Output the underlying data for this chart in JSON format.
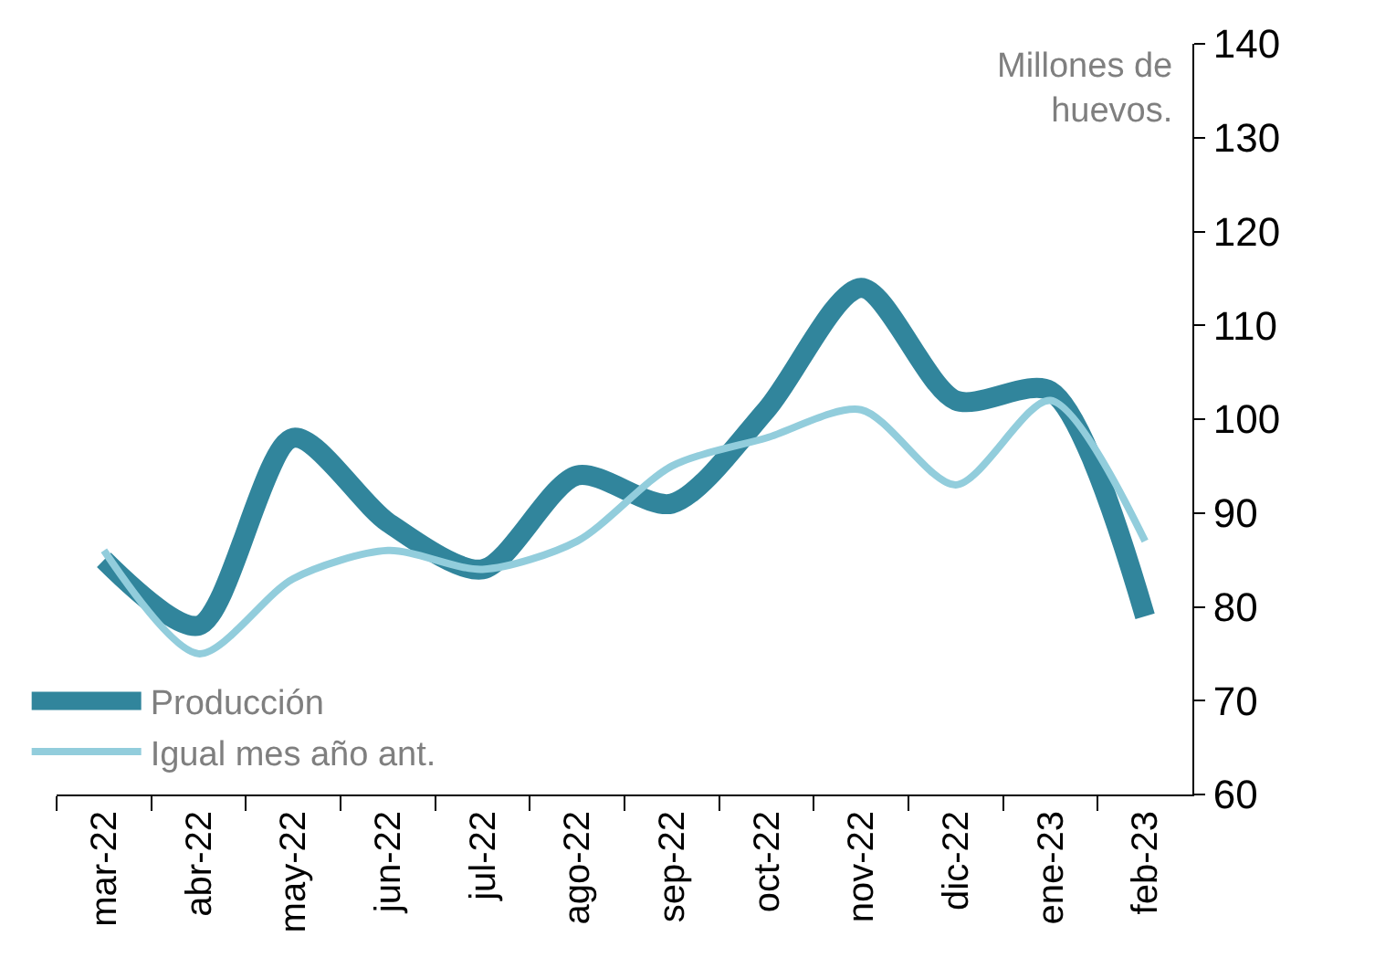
{
  "chart_data": {
    "type": "line",
    "ylabel": "Millones de huevos.",
    "categories": [
      "mar-22",
      "abr-22",
      "may-22",
      "jun-22",
      "jul-22",
      "ago-22",
      "sep-22",
      "oct-22",
      "nov-22",
      "dic-22",
      "ene-23",
      "feb-23"
    ],
    "series": [
      {
        "name": "Producción",
        "color": "#31859c",
        "values": [
          85,
          78,
          98,
          89,
          84,
          94,
          91,
          101,
          114,
          102,
          103,
          79
        ]
      },
      {
        "name": "Igual mes año ant.",
        "color": "#92cddc",
        "values": [
          86,
          75,
          83,
          86,
          84,
          87,
          95,
          98,
          101,
          93,
          102,
          87
        ]
      }
    ],
    "ylim": [
      60,
      140
    ],
    "yticks": [
      60,
      70,
      80,
      90,
      100,
      110,
      120,
      130,
      140
    ],
    "legend": "bottom left",
    "marker": "none",
    "line_style": "solid"
  }
}
